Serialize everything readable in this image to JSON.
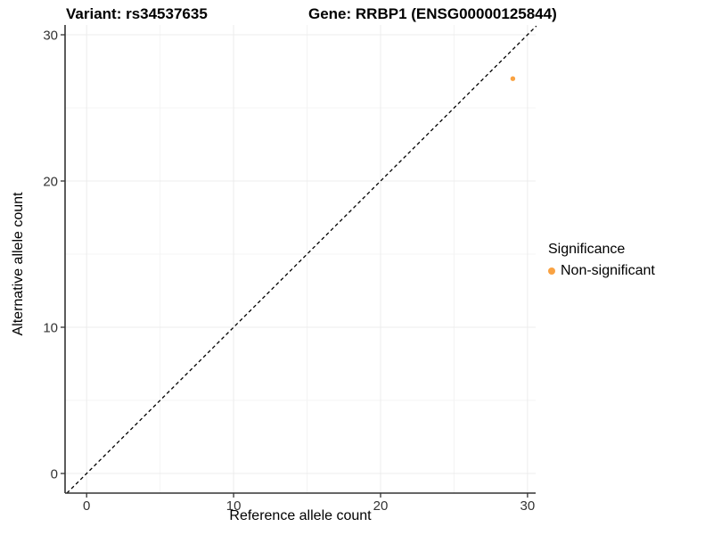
{
  "chart_data": {
    "type": "scatter",
    "title_left": "Variant: rs34537635",
    "title_right": "Gene: RRBP1 (ENSG00000125844)",
    "xlabel": "Reference allele count",
    "ylabel": "Alternative allele count",
    "xlim": [
      -1.45,
      30.6
    ],
    "ylim": [
      -1.35,
      30.7
    ],
    "x_ticks": [
      0,
      10,
      20,
      30
    ],
    "y_ticks": [
      0,
      10,
      20,
      30
    ],
    "x_minor_ticks": [
      5,
      15,
      25
    ],
    "y_minor_ticks": [
      5,
      15,
      25
    ],
    "grid": true,
    "reference_line": {
      "type": "identity",
      "slope": 1,
      "intercept": 0,
      "style": "dashed",
      "color": "#000000"
    },
    "series": [
      {
        "name": "Non-significant",
        "color": "#F9A242",
        "points": [
          {
            "x": 29,
            "y": 27
          }
        ]
      }
    ],
    "legend": {
      "title": "Significance",
      "position": "right",
      "items": [
        {
          "label": "Non-significant",
          "color": "#F9A242"
        }
      ]
    },
    "colors": {
      "point": "#F9A242",
      "axis_line": "#333333",
      "tick_text": "#333333",
      "grid_major": "#ECECEC",
      "grid_minor": "#F4F4F4",
      "background": "#FFFFFF"
    }
  }
}
